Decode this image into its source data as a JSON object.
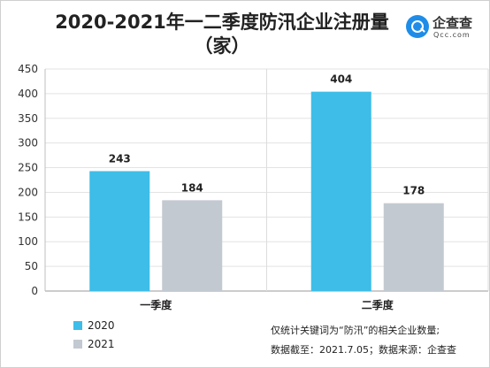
{
  "chart_data": {
    "type": "bar",
    "title": "2020-2021年一二季度防汛企业注册量",
    "subtitle": "（家）",
    "categories": [
      "一季度",
      "二季度"
    ],
    "series": [
      {
        "name": "2020",
        "values": [
          243,
          404
        ],
        "color": "#3dbde8"
      },
      {
        "name": "2021",
        "values": [
          184,
          178
        ],
        "color": "#c3c9d1"
      }
    ],
    "y_ticks": [
      0,
      50,
      100,
      150,
      200,
      250,
      300,
      350,
      400,
      450
    ],
    "ylim": [
      0,
      450
    ],
    "xlabel": "",
    "ylabel": "",
    "grid": true,
    "legend": "bottom-left"
  },
  "brand": {
    "name": "企查查",
    "domain": "Qcc.com",
    "icon": "magnifier-icon",
    "color": "#1f8de8"
  },
  "notes": {
    "line1": "仅统计关键词为“防汛”的相关企业数量;",
    "line2": "数据截至：2021.7.05；数据来源：企查查"
  }
}
